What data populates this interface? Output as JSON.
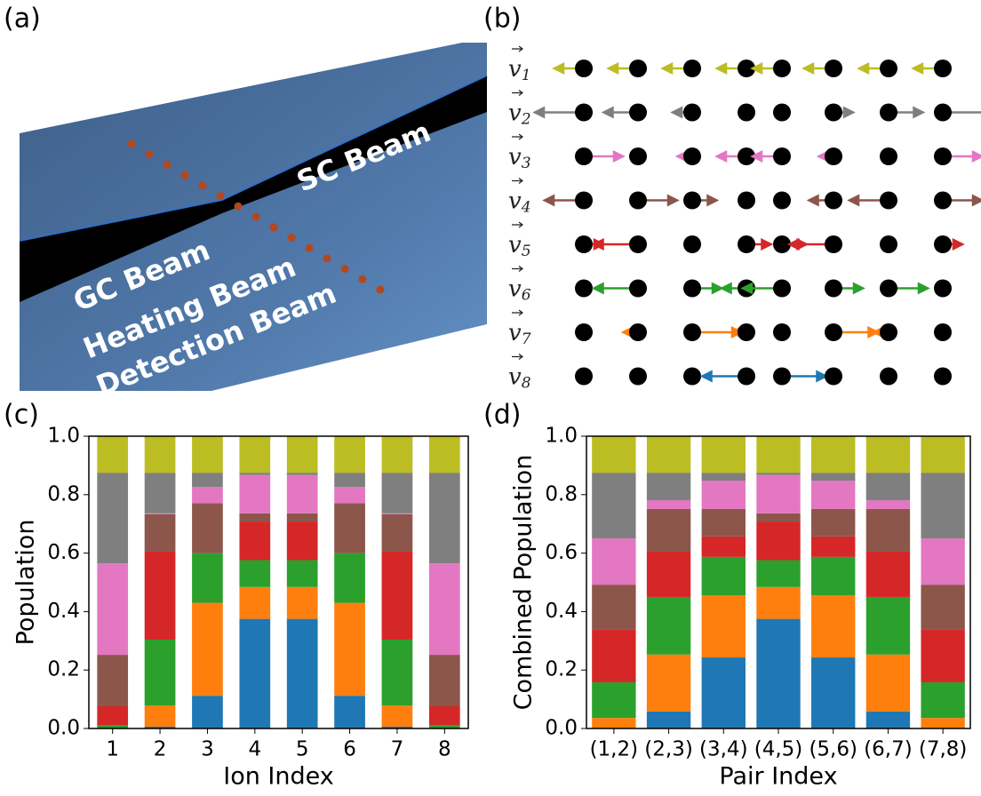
{
  "panel_labels": [
    "(a)",
    "(b)",
    "(c)",
    "(d)"
  ],
  "panel_a": {
    "beam_labels": [
      "SC Beam",
      "GC Beam",
      "Heating Beam",
      "Detection Beam"
    ]
  },
  "panel_b": {
    "modes": [
      {
        "symbol": "v",
        "subscript": "1",
        "color": "#bcbd22",
        "vector": [
          -0.6,
          -0.6,
          -0.6,
          -0.6,
          -0.6,
          -0.6,
          -0.6,
          -0.6
        ]
      },
      {
        "symbol": "v",
        "subscript": "2",
        "color": "#7f7f7f",
        "vector": [
          -1,
          -0.7,
          -0.4,
          -0.1,
          0.1,
          0.4,
          0.7,
          1
        ]
      },
      {
        "symbol": "v",
        "subscript": "3",
        "color": "#e377c2",
        "vector": [
          0.8,
          0,
          -0.3,
          -0.6,
          -0.6,
          -0.3,
          0,
          0.8
        ]
      },
      {
        "symbol": "v",
        "subscript": "4",
        "color": "#8c564b",
        "vector": [
          -0.8,
          0.8,
          0.5,
          0,
          0,
          -0.5,
          -0.8,
          0.8
        ]
      },
      {
        "symbol": "v",
        "subscript": "5",
        "color": "#d62728",
        "vector": [
          0.4,
          -0.9,
          0,
          0.5,
          0.5,
          -0.9,
          0,
          0.4
        ]
      },
      {
        "symbol": "v",
        "subscript": "6",
        "color": "#2ca02c",
        "vector": [
          0,
          -0.9,
          0.6,
          -0.5,
          -0.8,
          0.6,
          0.8,
          0
        ]
      },
      {
        "symbol": "v",
        "subscript": "7",
        "color": "#ff7f0e",
        "vector": [
          0,
          -0.3,
          1,
          -0.3,
          0,
          0.9,
          -0.3,
          0
        ]
      },
      {
        "symbol": "v",
        "subscript": "8",
        "color": "#1f77b4",
        "vector": [
          0,
          0,
          0,
          -0.9,
          0.9,
          0,
          0,
          0
        ]
      }
    ]
  },
  "chart_data": [
    {
      "type": "bar",
      "stacked": true,
      "xlabel": "Ion Index",
      "ylabel": "Population",
      "categories": [
        "1",
        "2",
        "3",
        "4",
        "5",
        "6",
        "7",
        "8"
      ],
      "ylim": [
        0,
        1.0
      ],
      "yticks": [
        {
          "value": 0,
          "label": "0.0"
        },
        0.2,
        0.4,
        0.6,
        0.8,
        {
          "value": 1.0,
          "label": "1.0"
        }
      ],
      "series": [
        {
          "color": "#1f77b4",
          "values": [
            0,
            0.006,
            0.112,
            0.375,
            0.375,
            0.112,
            0.006,
            0
          ]
        },
        {
          "color": "#ff7f0e",
          "values": [
            0,
            0.073,
            0.318,
            0.109,
            0.109,
            0.318,
            0.073,
            0
          ]
        },
        {
          "color": "#2ca02c",
          "values": [
            0.012,
            0.225,
            0.17,
            0.092,
            0.092,
            0.17,
            0.225,
            0.012
          ]
        },
        {
          "color": "#d62728",
          "values": [
            0.064,
            0.301,
            0,
            0.132,
            0.132,
            0,
            0.301,
            0.064
          ]
        },
        {
          "color": "#8c564b",
          "values": [
            0.176,
            0.128,
            0.171,
            0.028,
            0.028,
            0.171,
            0.128,
            0.176
          ]
        },
        {
          "color": "#e377c2",
          "values": [
            0.313,
            0.003,
            0.055,
            0.131,
            0.131,
            0.055,
            0.003,
            0.313
          ]
        },
        {
          "color": "#7f7f7f",
          "values": [
            0.31,
            0.139,
            0.049,
            0.008,
            0.008,
            0.049,
            0.139,
            0.31
          ]
        },
        {
          "color": "#bcbd22",
          "values": [
            0.125,
            0.125,
            0.125,
            0.125,
            0.125,
            0.125,
            0.125,
            0.125
          ]
        }
      ]
    },
    {
      "type": "bar",
      "stacked": true,
      "xlabel": "Pair Index",
      "ylabel": "Combined Population",
      "categories": [
        "(1,2)",
        "(2,3)",
        "(3,4)",
        "(4,5)",
        "(5,6)",
        "(6,7)",
        "(7,8)"
      ],
      "ylim": [
        0,
        1.0
      ],
      "yticks": [
        {
          "value": 0,
          "label": "0.0"
        },
        0.2,
        0.4,
        0.6,
        0.8,
        {
          "value": 1.0,
          "label": "1.0"
        }
      ],
      "series": [
        {
          "color": "#1f77b4",
          "values": [
            0,
            0.058,
            0.243,
            0.375,
            0.243,
            0.058,
            0
          ]
        },
        {
          "color": "#ff7f0e",
          "values": [
            0.036,
            0.195,
            0.213,
            0.109,
            0.213,
            0.195,
            0.036
          ]
        },
        {
          "color": "#2ca02c",
          "values": [
            0.122,
            0.197,
            0.131,
            0.092,
            0.131,
            0.197,
            0.122
          ]
        },
        {
          "color": "#d62728",
          "values": [
            0.182,
            0.155,
            0.07,
            0.132,
            0.07,
            0.155,
            0.182
          ]
        },
        {
          "color": "#8c564b",
          "values": [
            0.152,
            0.146,
            0.094,
            0.028,
            0.094,
            0.146,
            0.152
          ]
        },
        {
          "color": "#e377c2",
          "values": [
            0.158,
            0.03,
            0.097,
            0.131,
            0.097,
            0.03,
            0.158
          ]
        },
        {
          "color": "#7f7f7f",
          "values": [
            0.225,
            0.094,
            0.027,
            0.008,
            0.027,
            0.094,
            0.225
          ]
        },
        {
          "color": "#bcbd22",
          "values": [
            0.125,
            0.125,
            0.125,
            0.125,
            0.125,
            0.125,
            0.125
          ]
        }
      ]
    }
  ]
}
